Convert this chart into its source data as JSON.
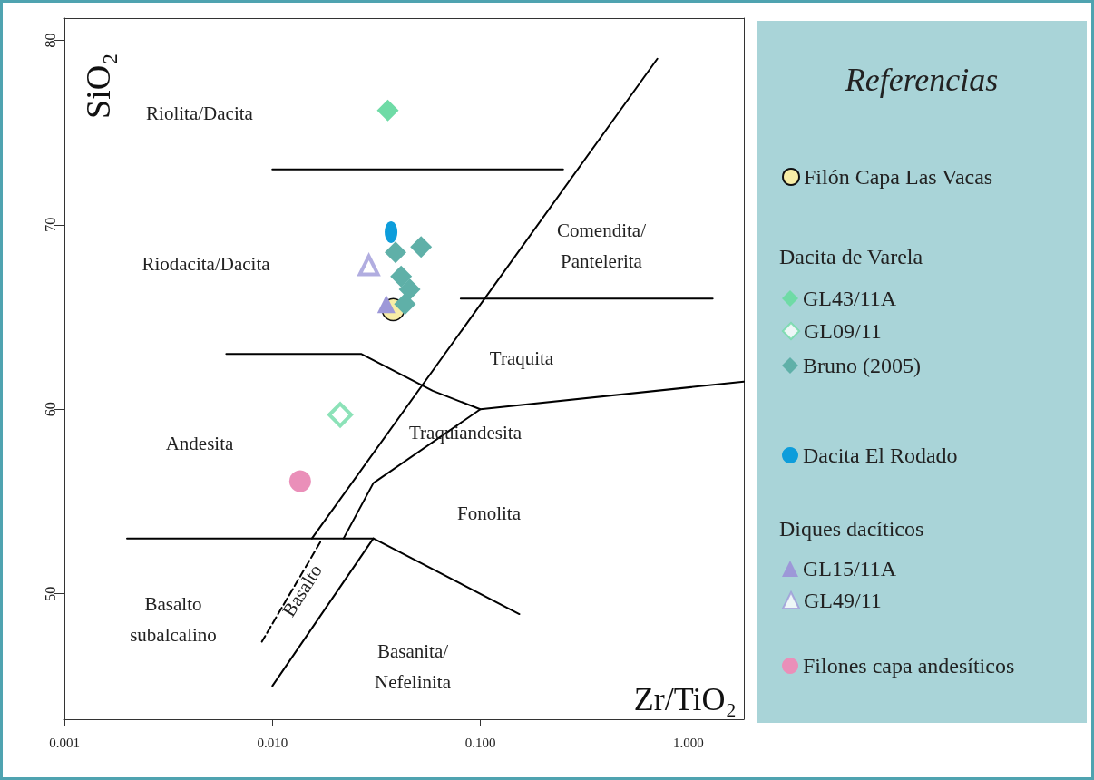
{
  "chart_data": {
    "type": "scatter",
    "xlabel": "Zr/TiO₂",
    "ylabel": "SiO₂",
    "legend_title": "Referencias",
    "log": "x",
    "grid": false,
    "legend": "right",
    "xlim": [
      0.001,
      1.85
    ],
    "ylim": [
      43.2,
      81.2
    ],
    "xticks": [
      {
        "value": 0.001,
        "label": "0.001"
      },
      {
        "value": 0.01,
        "label": "0.010"
      },
      {
        "value": 0.1,
        "label": "0.100"
      },
      {
        "value": 1,
        "label": "1.000"
      }
    ],
    "yticks": [
      50,
      60,
      70,
      80
    ],
    "series": [
      {
        "name": "Filón Capa Las Vacas",
        "color": "#f7eda6",
        "marker": "circle",
        "x": [
          0.0381
        ],
        "values": [
          65.4
        ]
      },
      {
        "name": "GL43/11A",
        "color": "#6fdba6",
        "marker": "diamond",
        "x": [
          0.0359
        ],
        "values": [
          76.2
        ]
      },
      {
        "name": "GL09/11",
        "color": "#6fdba6",
        "marker": "diamond",
        "x": [
          0.0212
        ],
        "values": [
          59.7
        ]
      },
      {
        "name": "Bruno (2005)",
        "color": "#5fb0a8",
        "marker": "diamond",
        "x": [
          0.0391,
          0.0519,
          0.0416,
          0.0457,
          0.0434
        ],
        "values": [
          68.5,
          68.8,
          67.2,
          66.5,
          65.7
        ]
      },
      {
        "name": "Dacita El Rodado",
        "color": "#0d9ddb",
        "marker": "circle",
        "x": [
          0.0372
        ],
        "values": [
          69.6
        ]
      },
      {
        "name": "GL15/11A",
        "color": "#9d98d8",
        "marker": "triangle",
        "x": [
          0.0353
        ],
        "values": [
          65.7
        ]
      },
      {
        "name": "GL49/11",
        "color": "#9d98d8",
        "marker": "triangle",
        "x": [
          0.0291
        ],
        "values": [
          67.8
        ]
      },
      {
        "name": "Filones capa andesíticos",
        "color": "#ea8fb9",
        "marker": "circle",
        "x": [
          0.0136
        ],
        "values": [
          56.1
        ]
      },
      {
        "type": "line",
        "color": "#000000",
        "marker": "none",
        "x": [
          0.01,
          0.25
        ],
        "values": [
          73.0,
          73.0
        ]
      },
      {
        "type": "line",
        "color": "#000000",
        "marker": "none",
        "x": [
          0.0155,
          0.71
        ],
        "values": [
          53.0,
          79.0
        ]
      },
      {
        "type": "line",
        "color": "#000000",
        "marker": "none",
        "x": [
          0.0805,
          1.31
        ],
        "values": [
          66.0,
          66.0
        ]
      },
      {
        "type": "line",
        "color": "#000000",
        "marker": "none",
        "x": [
          0.006,
          0.0267,
          0.059,
          0.1,
          1.85
        ],
        "values": [
          63.0,
          63.0,
          61.0,
          60.0,
          61.5
        ]
      },
      {
        "type": "line",
        "color": "#000000",
        "marker": "none",
        "x": [
          0.1,
          0.0306,
          0.022
        ],
        "values": [
          60.0,
          56.0,
          53.0
        ]
      },
      {
        "type": "line",
        "color": "#000000",
        "marker": "none",
        "x": [
          0.002,
          0.0306,
          0.154
        ],
        "values": [
          53.0,
          53.0,
          48.9
        ]
      },
      {
        "type": "line",
        "color": "#000000",
        "marker": "none",
        "x": [
          0.0306,
          0.01
        ],
        "values": [
          53.0,
          45.0
        ]
      },
      {
        "type": "line",
        "color": "#000000",
        "marker": "none",
        "line_style": "dashed",
        "x": [
          0.017,
          0.0089
        ],
        "values": [
          52.8,
          47.4
        ]
      }
    ],
    "annotations": [
      "Riolita/Dacita",
      "Riodacita/Dacita",
      "Comendita/\nPantelerita",
      "Traquita",
      "Traquiandesita",
      "Andesita",
      "Fonolita",
      "Basalto\nsubalcalino",
      "Basalto",
      "Basanita/\nNefelinita",
      "Dacita de Varela",
      "Diques dacíticos"
    ]
  }
}
